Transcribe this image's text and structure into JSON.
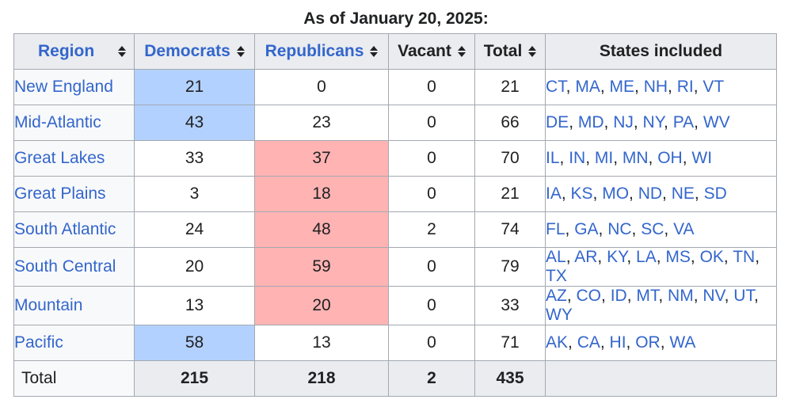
{
  "caption": "As of January 20, 2025:",
  "headers": {
    "region": "Region",
    "democrats": "Democrats",
    "republicans": "Republicans",
    "vacant": "Vacant",
    "total": "Total",
    "states": "States included"
  },
  "colors": {
    "democrat_majority": "#b3d1ff",
    "republican_majority": "#ffb3b3",
    "link": "#3366cc"
  },
  "rows": [
    {
      "region": "New England",
      "democrats": "21",
      "republicans": "0",
      "vacant": "0",
      "total": "21",
      "majority": "dem",
      "states": [
        "CT",
        "MA",
        "ME",
        "NH",
        "RI",
        "VT"
      ]
    },
    {
      "region": "Mid-Atlantic",
      "democrats": "43",
      "republicans": "23",
      "vacant": "0",
      "total": "66",
      "majority": "dem",
      "states": [
        "DE",
        "MD",
        "NJ",
        "NY",
        "PA",
        "WV"
      ]
    },
    {
      "region": "Great Lakes",
      "democrats": "33",
      "republicans": "37",
      "vacant": "0",
      "total": "70",
      "majority": "rep",
      "states": [
        "IL",
        "IN",
        "MI",
        "MN",
        "OH",
        "WI"
      ]
    },
    {
      "region": "Great Plains",
      "democrats": "3",
      "republicans": "18",
      "vacant": "0",
      "total": "21",
      "majority": "rep",
      "states": [
        "IA",
        "KS",
        "MO",
        "ND",
        "NE",
        "SD"
      ]
    },
    {
      "region": "South Atlantic",
      "democrats": "24",
      "republicans": "48",
      "vacant": "2",
      "total": "74",
      "majority": "rep",
      "states": [
        "FL",
        "GA",
        "NC",
        "SC",
        "VA"
      ]
    },
    {
      "region": "South Central",
      "democrats": "20",
      "republicans": "59",
      "vacant": "0",
      "total": "79",
      "majority": "rep",
      "states": [
        "AL",
        "AR",
        "KY",
        "LA",
        "MS",
        "OK",
        "TN",
        "TX"
      ]
    },
    {
      "region": "Mountain",
      "democrats": "13",
      "republicans": "20",
      "vacant": "0",
      "total": "33",
      "majority": "rep",
      "states": [
        "AZ",
        "CO",
        "ID",
        "MT",
        "NM",
        "NV",
        "UT",
        "WY"
      ]
    },
    {
      "region": "Pacific",
      "democrats": "58",
      "republicans": "13",
      "vacant": "0",
      "total": "71",
      "majority": "dem",
      "states": [
        "AK",
        "CA",
        "HI",
        "OR",
        "WA"
      ]
    }
  ],
  "totals": {
    "label": "Total",
    "democrats": "215",
    "republicans": "218",
    "vacant": "2",
    "total": "435"
  }
}
